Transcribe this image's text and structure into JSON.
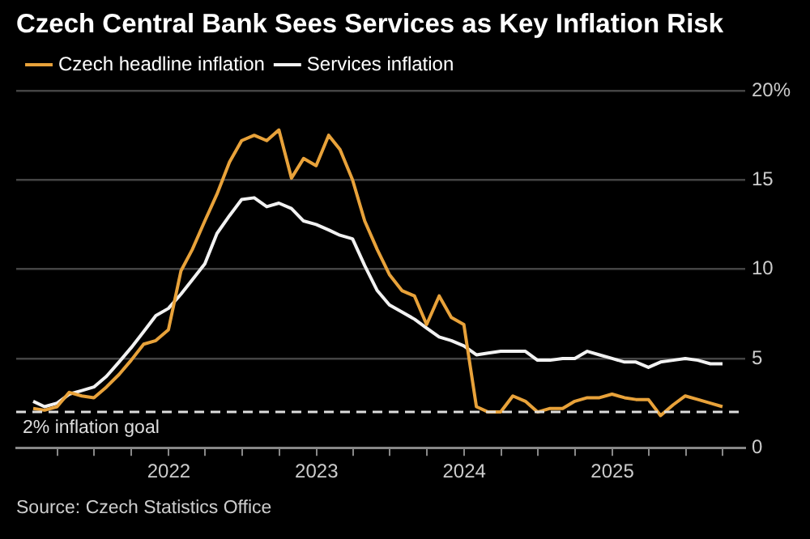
{
  "chart_data": {
    "type": "line",
    "title": "Czech Central Bank Sees Services as Key Inflation Risk",
    "x": [
      "2021-01-31",
      "2021-02-28",
      "2021-03-31",
      "2021-04-30",
      "2021-05-31",
      "2021-06-30",
      "2021-07-31",
      "2021-08-31",
      "2021-09-30",
      "2021-10-31",
      "2021-11-30",
      "2021-12-31",
      "2022-01-31",
      "2022-02-28",
      "2022-03-31",
      "2022-04-30",
      "2022-05-31",
      "2022-06-30",
      "2022-07-31",
      "2022-08-31",
      "2022-09-30",
      "2022-10-31",
      "2022-11-30",
      "2022-12-31",
      "2023-01-31",
      "2023-02-28",
      "2023-03-31",
      "2023-04-30",
      "2023-05-31",
      "2023-06-30",
      "2023-07-31",
      "2023-08-31",
      "2023-09-30",
      "2023-10-31",
      "2023-11-30",
      "2023-12-31",
      "2024-01-31",
      "2024-02-29",
      "2024-03-31",
      "2024-04-30",
      "2024-05-31",
      "2024-06-30",
      "2024-07-31",
      "2024-08-31",
      "2024-09-30",
      "2024-10-31",
      "2024-11-30",
      "2024-12-31",
      "2025-01-31",
      "2025-02-28",
      "2025-03-31",
      "2025-04-30",
      "2025-05-31",
      "2025-06-30",
      "2025-07-31",
      "2025-08-31",
      "2025-09-30"
    ],
    "series": [
      {
        "name": "Czech headline inflation",
        "color": "#e8a23a",
        "values": [
          2.2,
          2.1,
          2.3,
          3.1,
          2.9,
          2.8,
          3.4,
          4.1,
          4.9,
          5.8,
          6.0,
          6.6,
          9.9,
          11.1,
          12.7,
          14.2,
          16.0,
          17.2,
          17.5,
          17.2,
          17.8,
          15.1,
          16.2,
          15.8,
          17.5,
          16.7,
          15.0,
          12.7,
          11.1,
          9.7,
          8.8,
          8.5,
          6.9,
          8.5,
          7.3,
          6.9,
          2.3,
          2.0,
          2.0,
          2.9,
          2.6,
          2.0,
          2.2,
          2.2,
          2.6,
          2.8,
          2.8,
          3.0,
          2.8,
          2.7,
          2.7,
          1.8,
          2.4,
          2.9,
          2.7,
          2.5,
          2.3
        ]
      },
      {
        "name": "Services inflation",
        "color": "#f2f2f2",
        "values": [
          2.6,
          2.3,
          2.5,
          3.0,
          3.2,
          3.4,
          4.0,
          4.8,
          5.6,
          6.5,
          7.4,
          7.8,
          8.6,
          9.4,
          10.3,
          12.0,
          13.0,
          13.9,
          14.0,
          13.5,
          13.7,
          13.4,
          12.7,
          12.5,
          12.2,
          11.9,
          11.7,
          10.2,
          8.8,
          8.0,
          7.6,
          7.2,
          6.7,
          6.2,
          6.0,
          5.7,
          5.2,
          5.3,
          5.4,
          5.4,
          5.4,
          4.9,
          4.9,
          5.0,
          5.0,
          5.4,
          5.2,
          5.0,
          4.8,
          4.8,
          4.5,
          4.8,
          4.9,
          5.0,
          4.9,
          4.7,
          4.7
        ]
      }
    ],
    "xlim": [
      "2020-12-20",
      "2025-11-25"
    ],
    "xticks": [
      {
        "value": "2021-04-01",
        "label": null
      },
      {
        "value": "2021-07-01",
        "label": null
      },
      {
        "value": "2021-10-01",
        "label": null
      },
      {
        "value": "2022-01-01",
        "label": "2022"
      },
      {
        "value": "2022-04-01",
        "label": null
      },
      {
        "value": "2022-07-01",
        "label": null
      },
      {
        "value": "2022-10-01",
        "label": null
      },
      {
        "value": "2023-01-01",
        "label": "2023"
      },
      {
        "value": "2023-04-01",
        "label": null
      },
      {
        "value": "2023-07-01",
        "label": null
      },
      {
        "value": "2023-10-01",
        "label": null
      },
      {
        "value": "2024-01-01",
        "label": "2024"
      },
      {
        "value": "2024-04-01",
        "label": null
      },
      {
        "value": "2024-07-01",
        "label": null
      },
      {
        "value": "2024-10-01",
        "label": null
      },
      {
        "value": "2025-01-01",
        "label": "2025"
      },
      {
        "value": "2025-04-01",
        "label": null
      },
      {
        "value": "2025-07-01",
        "label": null
      },
      {
        "value": "2025-10-01",
        "label": null
      }
    ],
    "ylim": [
      0,
      20
    ],
    "yticks": [
      0,
      5,
      10,
      15,
      {
        "value": 20,
        "label": "20%"
      }
    ],
    "ref_lines": [
      {
        "axis": "y",
        "value": 2,
        "label": "2% inflation goal",
        "color": "#dddddd",
        "line_style": "dashed"
      }
    ],
    "annotations": [
      "Source: Czech Statistics Office"
    ],
    "grid": "y",
    "legend": "top left",
    "marker": "none",
    "line_style": "solid"
  }
}
